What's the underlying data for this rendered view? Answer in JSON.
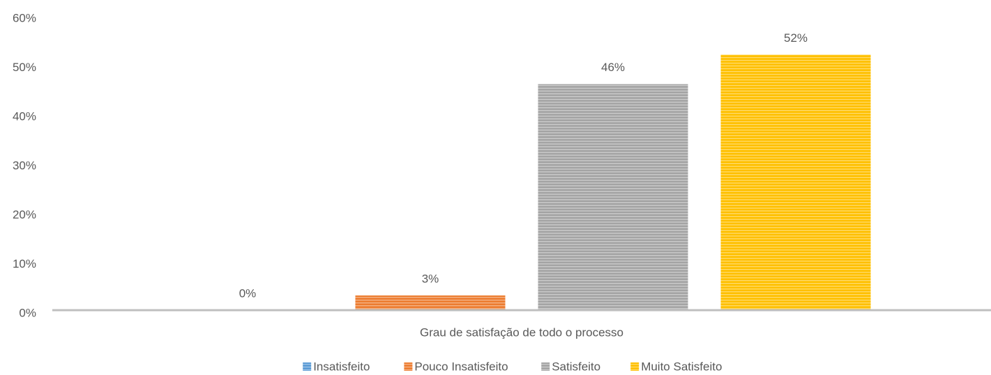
{
  "chart_data": {
    "type": "bar",
    "categories": [
      "Grau de satisfação de todo o processo"
    ],
    "series": [
      {
        "name": "Insatisfeito",
        "color": "#5b9bd5",
        "values": [
          0
        ],
        "value_labels": [
          "0%"
        ]
      },
      {
        "name": "Pouco Insatisfeito",
        "color": "#ed7d31",
        "values": [
          3
        ],
        "value_labels": [
          "3%"
        ]
      },
      {
        "name": "Satisfeito",
        "color": "#a5a5a5",
        "values": [
          46
        ],
        "value_labels": [
          "46%"
        ]
      },
      {
        "name": "Muito Satisfeito",
        "color": "#ffc000",
        "values": [
          52
        ],
        "value_labels": [
          "52%"
        ]
      }
    ],
    "ylim": [
      0,
      60
    ],
    "yticks": [
      {
        "value": 0,
        "label": "0%"
      },
      {
        "value": 10,
        "label": "10%"
      },
      {
        "value": 20,
        "label": "20%"
      },
      {
        "value": 30,
        "label": "30%"
      },
      {
        "value": 40,
        "label": "40%"
      },
      {
        "value": 50,
        "label": "50%"
      },
      {
        "value": 60,
        "label": "60%"
      }
    ],
    "grid": false,
    "legend": "bottom"
  }
}
